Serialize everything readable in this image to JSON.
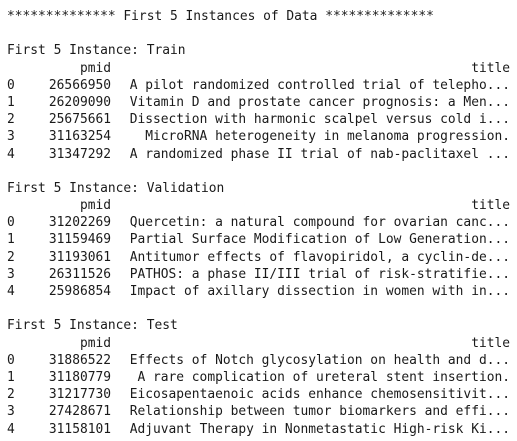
{
  "banner": "************** First 5 Instances of Data **************",
  "sections": [
    {
      "heading": "First 5 Instance: Train",
      "col_pmid": "pmid",
      "col_title": "title",
      "rows": [
        {
          "idx": "0",
          "pmid": "26566950",
          "title": "A pilot randomized controlled trial of telepho..."
        },
        {
          "idx": "1",
          "pmid": "26209090",
          "title": "Vitamin D and prostate cancer prognosis: a Men..."
        },
        {
          "idx": "2",
          "pmid": "25675661",
          "title": "Dissection with harmonic scalpel versus cold i..."
        },
        {
          "idx": "3",
          "pmid": "31163254",
          "title": "MicroRNA heterogeneity in melanoma progression."
        },
        {
          "idx": "4",
          "pmid": "31347292",
          "title": "A randomized phase II trial of nab-paclitaxel ..."
        }
      ]
    },
    {
      "heading": "First 5 Instance: Validation",
      "col_pmid": "pmid",
      "col_title": "title",
      "rows": [
        {
          "idx": "0",
          "pmid": "31202269",
          "title": "Quercetin: a natural compound for ovarian canc..."
        },
        {
          "idx": "1",
          "pmid": "31159469",
          "title": "Partial Surface Modification of Low Generation..."
        },
        {
          "idx": "2",
          "pmid": "31193061",
          "title": "Antitumor effects of flavopiridol, a cyclin-de..."
        },
        {
          "idx": "3",
          "pmid": "26311526",
          "title": "PATHOS: a phase II/III trial of risk-stratifie..."
        },
        {
          "idx": "4",
          "pmid": "25986854",
          "title": "Impact of axillary dissection in women with in..."
        }
      ]
    },
    {
      "heading": "First 5 Instance: Test",
      "col_pmid": "pmid",
      "col_title": "title",
      "rows": [
        {
          "idx": "0",
          "pmid": "31886522",
          "title": "Effects of Notch glycosylation on health and d..."
        },
        {
          "idx": "1",
          "pmid": "31180779",
          "title": "A rare complication of ureteral stent insertion."
        },
        {
          "idx": "2",
          "pmid": "31217730",
          "title": "Eicosapentaenoic acids enhance chemosensitivit..."
        },
        {
          "idx": "3",
          "pmid": "27428671",
          "title": "Relationship between tumor biomarkers and effi..."
        },
        {
          "idx": "4",
          "pmid": "31158101",
          "title": "Adjuvant Therapy in Nonmetastatic High-risk Ki..."
        }
      ]
    }
  ]
}
